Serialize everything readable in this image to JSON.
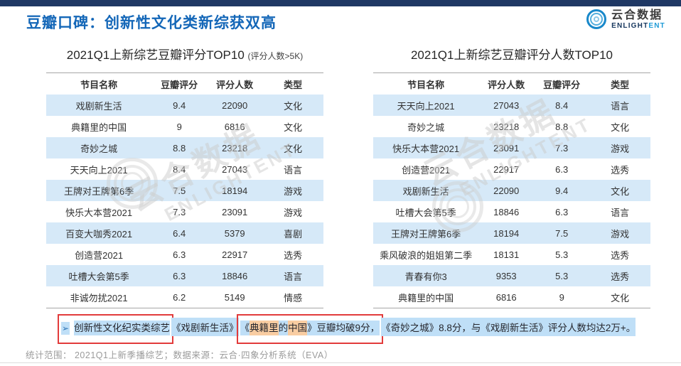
{
  "header": {
    "title": "豆瓣口碑：创新性文化类新综获双高",
    "logo": {
      "cn": "云合数据",
      "en_dark": "ENLIGHT",
      "en_blue": "ENT"
    }
  },
  "chart_data": [
    {
      "type": "table",
      "title": "2021Q1上新综艺豆瓣评分TOP10",
      "title_note": "(评分人数>5K)",
      "columns": [
        "节目名称",
        "豆瓣评分",
        "评分人数",
        "类型"
      ],
      "rows": [
        [
          "戏剧新生活",
          "9.4",
          "22090",
          "文化"
        ],
        [
          "典籍里的中国",
          "9",
          "6816",
          "文化"
        ],
        [
          "奇妙之城",
          "8.8",
          "23218",
          "文化"
        ],
        [
          "天天向上2021",
          "8.4",
          "27043",
          "语言"
        ],
        [
          "王牌对王牌第6季",
          "7.5",
          "18194",
          "游戏"
        ],
        [
          "快乐大本营2021",
          "7.3",
          "23091",
          "游戏"
        ],
        [
          "百变大咖秀2021",
          "6.4",
          "5379",
          "喜剧"
        ],
        [
          "创造营2021",
          "6.3",
          "22917",
          "选秀"
        ],
        [
          "吐槽大会第5季",
          "6.3",
          "18846",
          "语言"
        ],
        [
          "非诚勿扰2021",
          "6.2",
          "5149",
          "情感"
        ]
      ]
    },
    {
      "type": "table",
      "title": "2021Q1上新综艺豆瓣评分人数TOP10",
      "title_note": "",
      "columns": [
        "节目名称",
        "评分人数",
        "豆瓣评分",
        "类型"
      ],
      "rows": [
        [
          "天天向上2021",
          "27043",
          "8.4",
          "语言"
        ],
        [
          "奇妙之城",
          "23218",
          "8.8",
          "文化"
        ],
        [
          "快乐大本营2021",
          "23091",
          "7.3",
          "游戏"
        ],
        [
          "创造营2021",
          "22917",
          "6.3",
          "选秀"
        ],
        [
          "戏剧新生活",
          "22090",
          "9.4",
          "文化"
        ],
        [
          "吐槽大会第5季",
          "18846",
          "6.3",
          "语言"
        ],
        [
          "王牌对王牌第6季",
          "18194",
          "7.5",
          "游戏"
        ],
        [
          "乘风破浪的姐姐第二季",
          "18131",
          "5.3",
          "选秀"
        ],
        [
          "青春有你3",
          "9353",
          "5.3",
          "选秀"
        ],
        [
          "典籍里的中国",
          "6816",
          "9",
          "文化"
        ]
      ]
    }
  ],
  "annotation": {
    "bullet": "➢",
    "box1": "创新性文化纪实类综艺",
    "show1": "《戏剧新生活》",
    "box2_open": "《",
    "box2_hl1": "典籍里",
    "box2_mid": "的",
    "box2_hl2": "中国",
    "box2_close": "》豆瓣均破9分，",
    "tail": "《奇妙之城》8.8分，与《戏剧新生活》评分人数均达2万+。"
  },
  "watermark": {
    "cn": "云合数据",
    "en": "ENLIGHTENT"
  },
  "footer": {
    "text": "统计范围： 2021Q1上新季播综艺；数据来源：云合·四象分析系统（EVA）"
  },
  "colors": {
    "topbar": "#1F3864",
    "title_blue": "#1467B8",
    "row_alt_blue": "#D6E9F8",
    "highlight_blue": "#BFDFF7",
    "highlight_orange": "#F9CDA2",
    "red_box": "#E23B3B",
    "logo_blue": "#1E9BD7"
  }
}
